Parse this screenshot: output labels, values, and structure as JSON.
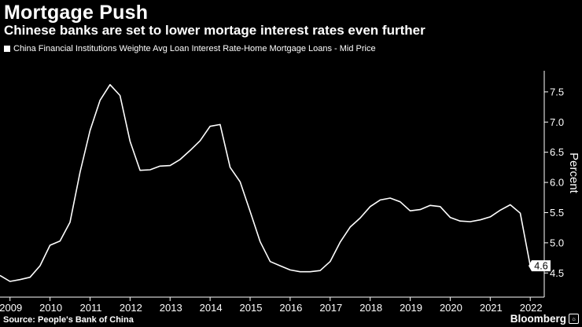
{
  "header": {
    "title": "Mortgage Push",
    "subtitle": "Chinese banks are set to lower mortage interest rates even further"
  },
  "footer": {
    "source": "Source: People's Bank of China",
    "brand": "Bloomberg",
    "brand_mark": "☼"
  },
  "chart_data": {
    "type": "line",
    "title": "Mortgage Push",
    "subtitle": "Chinese banks are set to lower mortage interest rates even further",
    "ylabel": "Percent",
    "xlabel": "",
    "ylim": [
      4.1,
      7.85
    ],
    "xlim": [
      2008.75,
      2022.35
    ],
    "yticks": [
      4.5,
      5.0,
      5.5,
      6.0,
      6.5,
      7.0,
      7.5
    ],
    "ytick_labels": [
      "4.5",
      "5.0",
      "5.5",
      "6.0",
      "6.5",
      "7.0",
      "7.5"
    ],
    "xticks": [
      2009,
      2010,
      2011,
      2012,
      2013,
      2014,
      2015,
      2016,
      2017,
      2018,
      2019,
      2020,
      2021,
      2022
    ],
    "xtick_labels": [
      "2009",
      "2010",
      "2011",
      "2012",
      "2013",
      "2014",
      "2015",
      "2016",
      "2017",
      "2018",
      "2019",
      "2020",
      "2021",
      "2022"
    ],
    "grid": false,
    "last_value_label": "4.6",
    "series": [
      {
        "name": "China Financial Institutions Weighte Avg Loan Interest Rate-Home Mortgage Loans - Mid Price",
        "color": "#ffffff",
        "x": [
          2008.75,
          2009.0,
          2009.25,
          2009.5,
          2009.75,
          2010.0,
          2010.25,
          2010.5,
          2010.75,
          2011.0,
          2011.25,
          2011.5,
          2011.75,
          2012.0,
          2012.25,
          2012.5,
          2012.75,
          2013.0,
          2013.25,
          2013.5,
          2013.75,
          2014.0,
          2014.25,
          2014.5,
          2014.75,
          2015.0,
          2015.25,
          2015.5,
          2015.75,
          2016.0,
          2016.25,
          2016.5,
          2016.75,
          2017.0,
          2017.25,
          2017.5,
          2017.75,
          2018.0,
          2018.25,
          2018.5,
          2018.75,
          2019.0,
          2019.25,
          2019.5,
          2019.75,
          2020.0,
          2020.25,
          2020.5,
          2020.75,
          2021.0,
          2021.25,
          2021.5,
          2021.75,
          2022.0
        ],
        "values": [
          4.46,
          4.36,
          4.39,
          4.43,
          4.62,
          4.96,
          5.03,
          5.34,
          6.17,
          6.86,
          7.36,
          7.62,
          7.44,
          6.68,
          6.2,
          6.21,
          6.27,
          6.28,
          6.38,
          6.53,
          6.69,
          6.93,
          6.96,
          6.25,
          6.01,
          5.52,
          5.02,
          4.69,
          4.62,
          4.55,
          4.52,
          4.52,
          4.54,
          4.69,
          5.01,
          5.26,
          5.41,
          5.6,
          5.71,
          5.74,
          5.68,
          5.53,
          5.55,
          5.62,
          5.6,
          5.42,
          5.36,
          5.35,
          5.38,
          5.43,
          5.54,
          5.63,
          5.49,
          4.62
        ]
      }
    ]
  }
}
